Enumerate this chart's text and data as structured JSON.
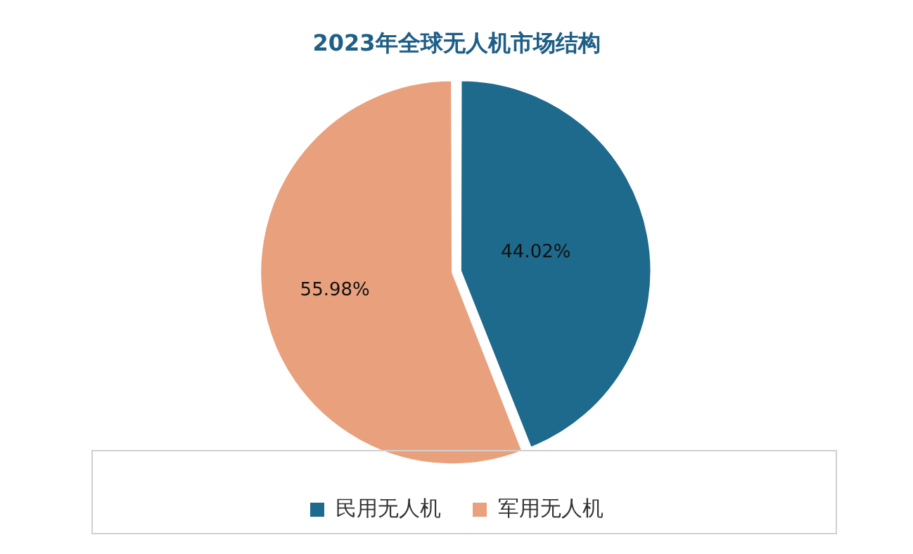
{
  "chart_data": {
    "type": "pie",
    "title": "2023年全球无人机市场结构",
    "categories": [
      "民用无人机",
      "军用无人机"
    ],
    "values": [
      44.02,
      55.98
    ],
    "colors": [
      "#1d6a8c",
      "#e9a07d"
    ],
    "value_labels": [
      "44.02%",
      "55.98%"
    ],
    "legend": "bottom"
  }
}
